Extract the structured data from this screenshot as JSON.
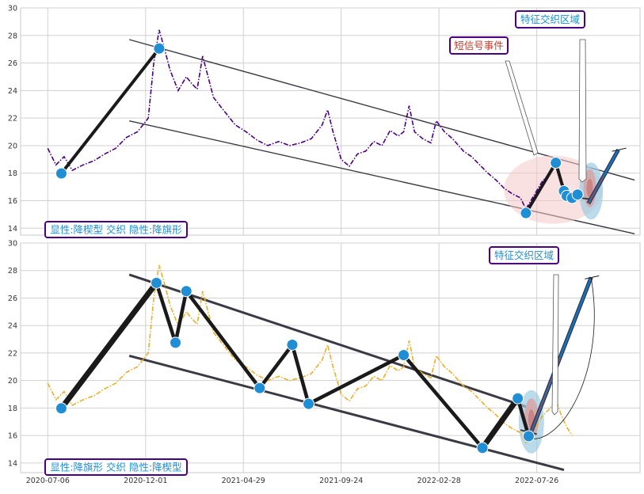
{
  "chart_data": [
    {
      "type": "line",
      "panel": "top",
      "ylim": [
        13.5,
        30
      ],
      "yticks": [
        14,
        16,
        18,
        20,
        22,
        24,
        26,
        28,
        30
      ],
      "grid": true,
      "series_color": "#4b0082",
      "series": [
        {
          "values": [
            [
              0,
              19.8
            ],
            [
              3,
              18.6
            ],
            [
              6,
              19.2
            ],
            [
              9,
              18.2
            ],
            [
              13,
              18.6
            ],
            [
              17,
              18.9
            ],
            [
              21,
              19.4
            ],
            [
              25,
              19.8
            ],
            [
              29,
              20.6
            ],
            [
              33,
              21.0
            ],
            [
              37,
              22.0
            ],
            [
              39,
              26.0
            ],
            [
              41,
              28.4
            ],
            [
              43,
              27.0
            ],
            [
              45,
              25.5
            ],
            [
              48,
              24.0
            ],
            [
              51,
              25.0
            ],
            [
              53,
              24.5
            ],
            [
              55,
              24.1
            ],
            [
              57,
              26.5
            ],
            [
              59,
              25.0
            ],
            [
              61,
              23.5
            ],
            [
              65,
              22.5
            ],
            [
              69,
              21.5
            ],
            [
              73,
              21.0
            ],
            [
              77,
              20.4
            ],
            [
              81,
              20.0
            ],
            [
              85,
              20.3
            ],
            [
              89,
              20.0
            ],
            [
              93,
              20.2
            ],
            [
              97,
              20.5
            ],
            [
              101,
              21.5
            ],
            [
              103,
              22.6
            ],
            [
              105,
              21.0
            ],
            [
              108,
              19.0
            ],
            [
              111,
              18.5
            ],
            [
              114,
              19.4
            ],
            [
              117,
              19.6
            ],
            [
              120,
              20.3
            ],
            [
              123,
              20.0
            ],
            [
              126,
              21.1
            ],
            [
              129,
              20.7
            ],
            [
              131,
              21.0
            ],
            [
              133,
              22.9
            ],
            [
              135,
              21.0
            ],
            [
              138,
              20.5
            ],
            [
              141,
              20.2
            ],
            [
              143,
              21.8
            ],
            [
              146,
              21.0
            ],
            [
              149,
              20.5
            ],
            [
              153,
              19.6
            ],
            [
              156,
              19.2
            ],
            [
              159,
              18.6
            ],
            [
              162,
              18.0
            ],
            [
              165,
              17.5
            ],
            [
              168,
              16.9
            ],
            [
              171,
              16.5
            ],
            [
              174,
              16.2
            ],
            [
              176,
              15.4
            ],
            [
              179,
              16.4
            ],
            [
              182,
              17.4
            ],
            [
              185,
              18.0
            ],
            [
              187,
              18.6
            ],
            [
              189,
              17.5
            ],
            [
              191,
              16.6
            ],
            [
              193,
              16.0
            ]
          ]
        }
      ],
      "pattern_points": [
        [
          5,
          17.98
        ],
        [
          41,
          27.05
        ],
        [
          176,
          15.1
        ],
        [
          187,
          18.75
        ],
        [
          190,
          16.7
        ],
        [
          191,
          16.35
        ],
        [
          193,
          16.2
        ],
        [
          195,
          16.45
        ]
      ],
      "pattern_line": [
        [
          5,
          17.98
        ],
        [
          41,
          27.05
        ]
      ],
      "pattern_line_2": [
        [
          176,
          15.1
        ],
        [
          187,
          18.75
        ],
        [
          190,
          16.7
        ]
      ],
      "channel_upper": [
        [
          30,
          27.7
        ],
        [
          216,
          17.5
        ]
      ],
      "channel_lower": [
        [
          30,
          21.8
        ],
        [
          216,
          13.6
        ]
      ],
      "flag_upper": [
        [
          192,
          16.3
        ],
        [
          200,
          16.1
        ]
      ],
      "forecast_line": [
        [
          199,
          15.8
        ],
        [
          210,
          19.7
        ]
      ],
      "label_text": "显性:降楔型 交织 隐性:降旗形",
      "annotation_zone": "特征交织区域",
      "annotation_event": "短信号事件"
    },
    {
      "type": "line",
      "panel": "bottom",
      "ylim": [
        13.3,
        30
      ],
      "yticks": [
        14,
        16,
        18,
        20,
        22,
        24,
        26,
        28,
        30
      ],
      "grid": true,
      "series_color": "#e8b02a",
      "series": [
        {
          "values": [
            [
              0,
              19.8
            ],
            [
              3,
              18.6
            ],
            [
              6,
              19.2
            ],
            [
              9,
              18.2
            ],
            [
              13,
              18.6
            ],
            [
              17,
              18.9
            ],
            [
              21,
              19.4
            ],
            [
              25,
              19.8
            ],
            [
              29,
              20.6
            ],
            [
              33,
              21.0
            ],
            [
              37,
              22.0
            ],
            [
              39,
              26.0
            ],
            [
              41,
              28.4
            ],
            [
              43,
              27.0
            ],
            [
              45,
              25.5
            ],
            [
              48,
              24.0
            ],
            [
              51,
              25.0
            ],
            [
              53,
              24.5
            ],
            [
              55,
              24.1
            ],
            [
              57,
              26.5
            ],
            [
              59,
              25.0
            ],
            [
              61,
              23.5
            ],
            [
              65,
              22.5
            ],
            [
              69,
              21.5
            ],
            [
              73,
              21.0
            ],
            [
              77,
              20.4
            ],
            [
              81,
              20.0
            ],
            [
              85,
              20.3
            ],
            [
              89,
              20.0
            ],
            [
              93,
              20.2
            ],
            [
              97,
              20.5
            ],
            [
              101,
              21.5
            ],
            [
              103,
              22.6
            ],
            [
              105,
              21.0
            ],
            [
              108,
              19.0
            ],
            [
              111,
              18.5
            ],
            [
              114,
              19.4
            ],
            [
              117,
              19.6
            ],
            [
              120,
              20.3
            ],
            [
              123,
              20.0
            ],
            [
              126,
              21.1
            ],
            [
              129,
              20.7
            ],
            [
              131,
              21.0
            ],
            [
              133,
              22.9
            ],
            [
              135,
              21.0
            ],
            [
              138,
              20.5
            ],
            [
              141,
              20.2
            ],
            [
              143,
              21.8
            ],
            [
              146,
              21.0
            ],
            [
              149,
              20.5
            ],
            [
              153,
              19.6
            ],
            [
              156,
              19.2
            ],
            [
              159,
              18.6
            ],
            [
              162,
              18.0
            ],
            [
              165,
              17.5
            ],
            [
              168,
              16.9
            ],
            [
              171,
              16.5
            ],
            [
              174,
              16.2
            ],
            [
              176,
              15.4
            ],
            [
              179,
              16.4
            ],
            [
              182,
              17.4
            ],
            [
              185,
              18.0
            ],
            [
              187,
              18.6
            ],
            [
              189,
              17.5
            ],
            [
              191,
              16.6
            ],
            [
              193,
              16.0
            ]
          ]
        }
      ],
      "pattern_points": [
        [
          5,
          17.98
        ],
        [
          40,
          27.1
        ],
        [
          47,
          22.75
        ],
        [
          51,
          26.5
        ],
        [
          78,
          19.45
        ],
        [
          90,
          22.6
        ],
        [
          96,
          18.3
        ],
        [
          131,
          21.85
        ],
        [
          160,
          15.1
        ],
        [
          173,
          18.7
        ],
        [
          177,
          15.95
        ]
      ],
      "zigzag": [
        [
          5,
          17.98
        ],
        [
          40,
          27.1
        ],
        [
          47,
          22.75
        ],
        [
          51,
          26.5
        ],
        [
          78,
          19.45
        ],
        [
          90,
          22.6
        ],
        [
          96,
          18.3
        ],
        [
          131,
          21.85
        ],
        [
          160,
          15.1
        ],
        [
          173,
          18.7
        ],
        [
          177,
          15.95
        ]
      ],
      "channel_upper": [
        [
          30,
          27.7
        ],
        [
          176,
          18.1
        ]
      ],
      "channel_lower": [
        [
          30,
          21.8
        ],
        [
          190,
          13.5
        ]
      ],
      "flag_upper": [
        [
          174,
          16.4
        ],
        [
          180,
          16.1
        ]
      ],
      "forecast_line": [
        [
          177,
          15.8
        ],
        [
          200,
          27.5
        ]
      ],
      "label_text": "显性:降旗形 交织 隐性:降楔型",
      "annotation_zone": "特征交织区域"
    }
  ],
  "x_axis": {
    "tick_labels": [
      "2020-07-06",
      "2020-12-01",
      "2021-04-29",
      "2021-09-24",
      "2022-02-28",
      "2022-07-26"
    ],
    "tick_positions": [
      0,
      36,
      72,
      108,
      144,
      180
    ]
  },
  "colors": {
    "grid": "#d0d0d0",
    "frame": "#c8c8c8",
    "point": "#1f8ed4",
    "pattern_line": "#1a1a1a",
    "channel": "#3a3a44",
    "label_text": "#1f8ed4",
    "label_border": "#4b0082",
    "event_text": "#c0392b",
    "zone_fill": "#f4c6c8",
    "ellipse_blue": "#9ecae1",
    "forecast": "#1f6fb0"
  }
}
